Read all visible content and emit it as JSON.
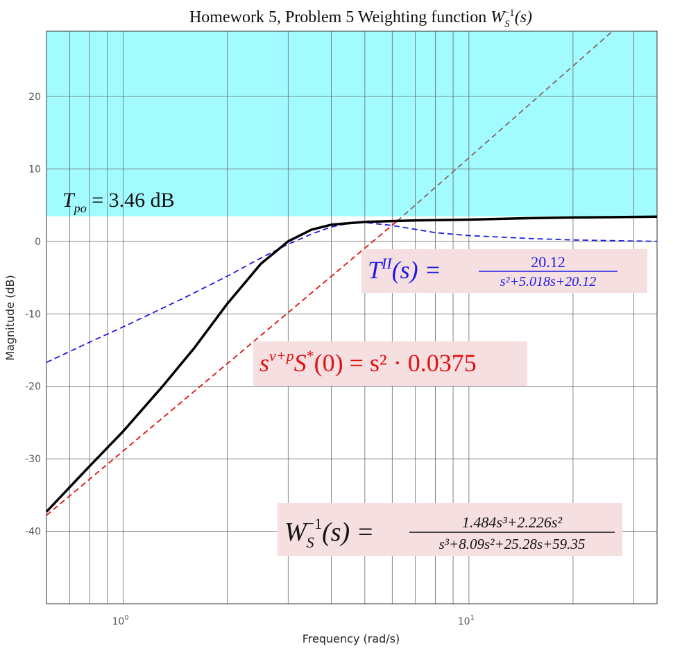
{
  "chart_data": {
    "type": "line",
    "title_text": "Homework 5, Problem 5 Weighting function ",
    "title_math": "W",
    "title_sub": "S",
    "title_sup": "−1",
    "title_tail": "(s)",
    "xlabel": "Frequency  (rad/s)",
    "ylabel": "Magnitude (dB)",
    "xscale": "log",
    "xlim": [
      0.6,
      35
    ],
    "ylim": [
      -50,
      29
    ],
    "grid": true,
    "yticks": [
      20,
      10,
      0,
      -10,
      -20,
      -30,
      -40
    ],
    "xticks": [
      {
        "value": 1,
        "base": "10",
        "exp": "0"
      },
      {
        "value": 10,
        "base": "10",
        "exp": "1"
      }
    ],
    "shaded_region": {
      "y_from": 3.46,
      "y_to": 29,
      "color": "#a2fcff"
    },
    "annotations": {
      "tpo": {
        "lhs": "T",
        "sub": "po",
        "rhs": " = 3.46 dB"
      },
      "tii": {
        "lhs": "T",
        "sup": "II",
        "arg": "(s) = ",
        "num": "20.12",
        "den": "s²+5.018s+20.12",
        "color": "#1a1ae6"
      },
      "snu": {
        "base": "s",
        "sup": "ν+p",
        "mid": "S",
        "star": "*",
        "rhs": "(0) = s² · 0.0375",
        "color": "#e01010"
      },
      "ws": {
        "lhs": "W",
        "sub": "S",
        "sup": "−1",
        "arg": "(s) = ",
        "num": "1.484s³+2.226s²",
        "den": "s³+8.09s²+25.28s+59.35",
        "color": "#111111"
      }
    },
    "series": [
      {
        "key": "ws_inv",
        "color": "#000000",
        "style": "solid",
        "x": [
          0.6,
          0.8,
          1.0,
          1.3,
          1.6,
          2.0,
          2.5,
          3.0,
          3.5,
          4.0,
          5.0,
          7.0,
          10.0,
          15.0,
          20.0,
          35.0
        ],
        "y": [
          -37.3,
          -31.0,
          -26.2,
          -20.0,
          -14.8,
          -8.6,
          -3.1,
          0.0,
          1.6,
          2.3,
          2.7,
          2.9,
          3.0,
          3.2,
          3.3,
          3.4
        ]
      },
      {
        "key": "t_ii",
        "color": "#1a1ae6",
        "style": "dashed",
        "x": [
          0.6,
          0.8,
          1.0,
          1.5,
          2.0,
          2.5,
          3.0,
          3.5,
          4.0,
          4.5,
          5.0,
          6.0,
          8.0,
          10.0,
          15.0,
          20.0,
          35.0
        ],
        "y": [
          -16.7,
          -13.9,
          -11.8,
          -7.8,
          -4.8,
          -2.3,
          -0.4,
          1.0,
          2.0,
          2.5,
          2.6,
          2.2,
          1.2,
          0.8,
          0.4,
          0.2,
          0.0
        ]
      },
      {
        "key": "s2_asym",
        "color": "#e01010",
        "style": "dashed",
        "x": [
          0.6,
          6.2
        ],
        "y": [
          -37.8,
          2.8
        ]
      },
      {
        "key": "s2_asym_ext",
        "color": "#8c6464",
        "style": "dashed",
        "x": [
          6.2,
          26
        ],
        "y": [
          2.8,
          29
        ]
      }
    ]
  }
}
